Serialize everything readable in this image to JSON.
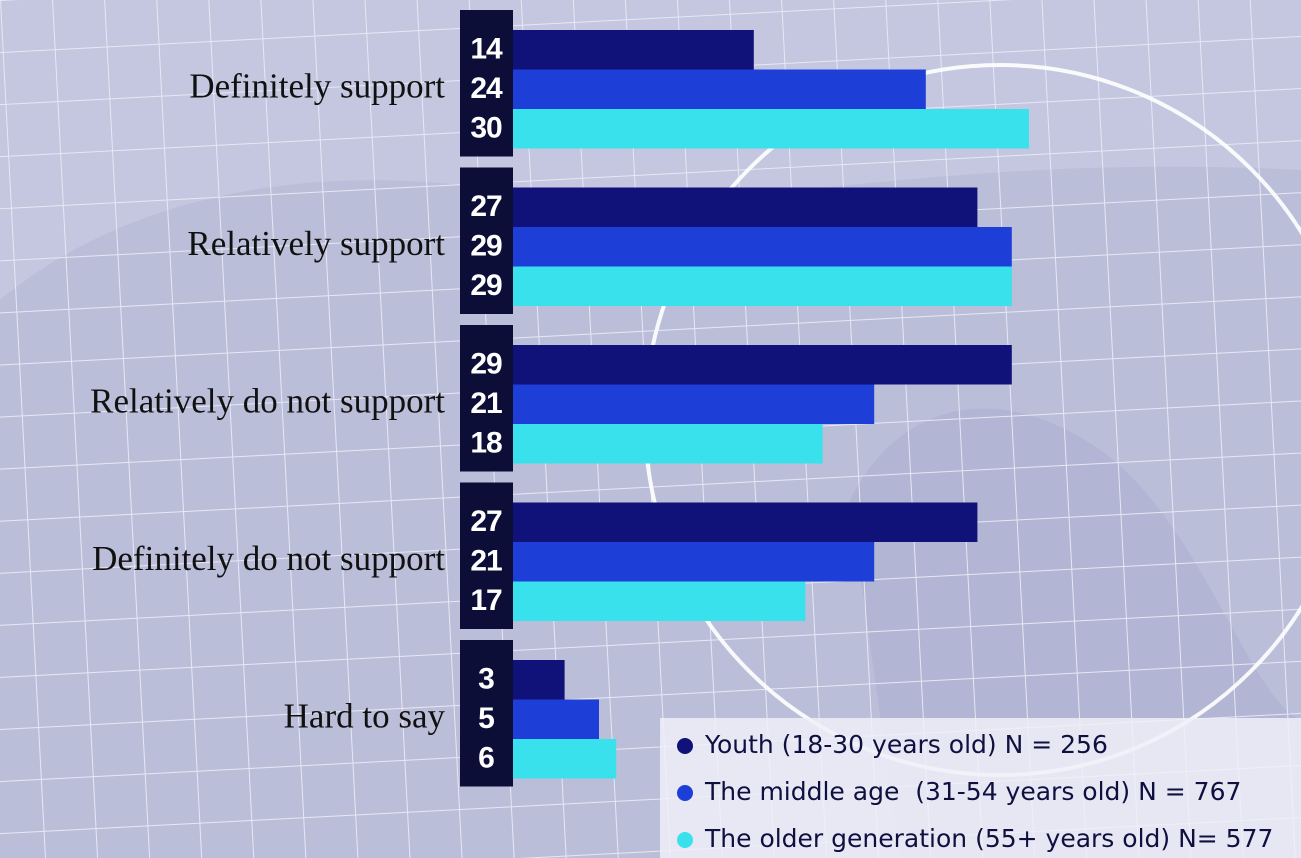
{
  "chart_data": {
    "type": "bar",
    "orientation": "horizontal",
    "categories": [
      "Definitely support",
      "Relatively support",
      "Relatively do not support",
      "Definitely do not support",
      "Hard to say"
    ],
    "series": [
      {
        "name": "Youth (18-30 years old) N = 256",
        "color": "#10127a",
        "values": [
          14,
          27,
          29,
          27,
          3
        ]
      },
      {
        "name": "The middle age  (31-54 years old) N = 767",
        "color": "#1d3fd8",
        "values": [
          24,
          29,
          21,
          21,
          5
        ]
      },
      {
        "name": "The older generation (55+ years old) N= 577",
        "color": "#38e1ec",
        "values": [
          30,
          29,
          18,
          17,
          6
        ]
      }
    ]
  }
}
